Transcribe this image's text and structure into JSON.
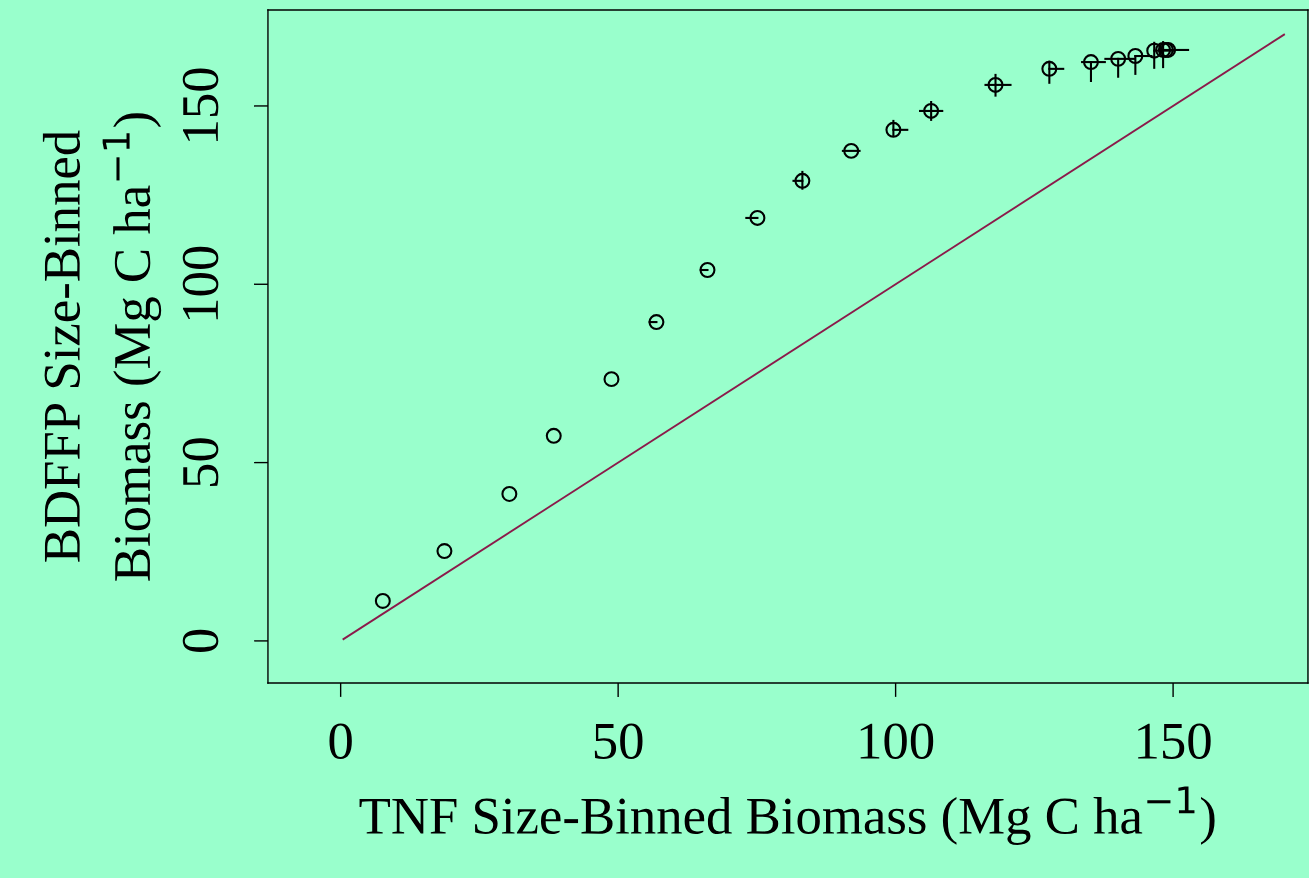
{
  "chart_data": {
    "type": "scatter",
    "xlabel": "TNF Size-Binned Biomass (Mg C ha$^{−1}$)",
    "ylabel": "BDFFP Size-Binned\nBiomass (Mg C ha$^{−1}$)",
    "xlim": [
      -13.1,
      174.3
    ],
    "ylim": [
      -11.8,
      176.9
    ],
    "xticks": [
      0,
      50,
      100,
      150
    ],
    "yticks": [
      0,
      50,
      100,
      150
    ],
    "grid": false,
    "legend": false,
    "series": [
      {
        "color": "#000000",
        "marker": "circle",
        "x": [
          7.6,
          18.7,
          30.4,
          38.4,
          48.8,
          56.9,
          66.1,
          75.1,
          83.2,
          92.0,
          99.6,
          106.4,
          118.0,
          127.7,
          135.2,
          140.1,
          143.2,
          146.6,
          148.2,
          148.7,
          149.1
        ],
        "values": [
          11.2,
          25.2,
          41.2,
          57.5,
          73.4,
          89.4,
          104.0,
          118.6,
          129.0,
          137.4,
          143.3,
          148.6,
          155.9,
          160.4,
          162.3,
          163.2,
          164.0,
          165.5,
          165.7,
          165.7,
          165.7
        ],
        "errors": [
          null,
          null,
          null,
          null,
          null,
          null,
          null,
          null,
          [
            126.8,
            131.5
          ],
          null,
          [
            141.6,
            145.8
          ],
          2.5,
          [
            152.9,
            158.7
          ],
          [
            156.5,
            162.4
          ],
          [
            157.0,
            162.3
          ],
          [
            158.2,
            163.2
          ],
          [
            159.0,
            164.0
          ],
          [
            160.7,
            167.7
          ],
          [
            160.9,
            167.9
          ],
          null,
          null
        ],
        "xerrors": [
          null,
          null,
          null,
          null,
          null,
          [
            55.7,
            56.9
          ],
          [
            64.9,
            66.1
          ],
          [
            73.1,
            75.1
          ],
          [
            81.6,
            83.2
          ],
          1.5,
          [
            99.6,
            102.1
          ],
          2.0,
          [
            116.2,
            120.7
          ],
          [
            127.7,
            130.2
          ],
          [
            133.6,
            137.7
          ],
          [
            137.8,
            143.0
          ],
          [
            143.2,
            146.1
          ],
          [
            146.6,
            150.2
          ],
          [
            148.2,
            152.7
          ],
          null,
          null
        ]
      },
      {
        "type": "line",
        "color": "#8b1a4a",
        "line_style": "solid",
        "x": [
          0.5,
          170.0
        ],
        "values": [
          0.5,
          170.0
        ]
      }
    ]
  }
}
